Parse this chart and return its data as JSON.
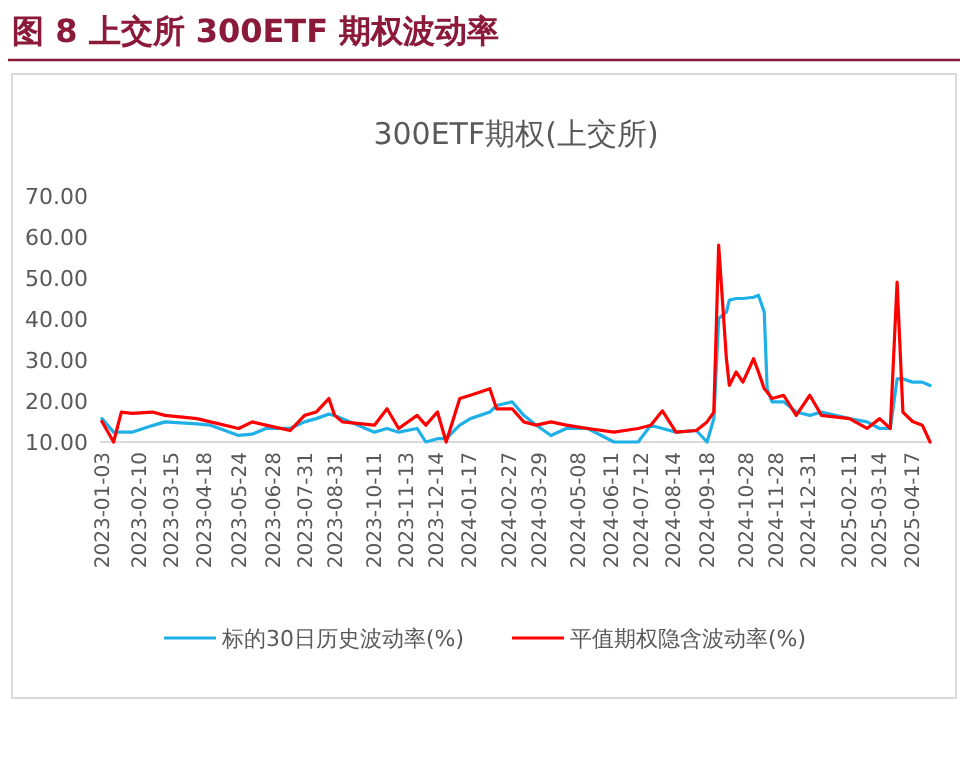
{
  "chart_data": {
    "type": "line",
    "title": "图 8  上交所 300ETF 期权波动率",
    "subtitle": "300ETF期权(上交所)",
    "xlim": [
      "2023-01-01",
      "2025-05-08"
    ],
    "xticks": [
      "2023-01-03",
      "2023-02-10",
      "2023-03-15",
      "2023-04-18",
      "2023-05-24",
      "2023-06-28",
      "2023-07-31",
      "2023-08-31",
      "2023-10-11",
      "2023-11-13",
      "2023-12-14",
      "2024-01-17",
      "2024-02-27",
      "2024-03-29",
      "2024-05-08",
      "2024-06-11",
      "2024-07-12",
      "2024-08-14",
      "2024-09-18",
      "2024-10-28",
      "2024-11-28",
      "2024-12-31",
      "2025-02-11",
      "2025-03-14",
      "2025-04-17"
    ],
    "ylim": [
      10,
      70
    ],
    "yticks": [
      {
        "value": 10,
        "label": "10.00"
      },
      {
        "value": 20,
        "label": "20.00"
      },
      {
        "value": 30,
        "label": "30.00"
      },
      {
        "value": 40,
        "label": "40.00"
      },
      {
        "value": 50,
        "label": "50.00"
      },
      {
        "value": 60,
        "label": "60.00"
      },
      {
        "value": 70,
        "label": "70.00"
      }
    ],
    "x": [
      "2023-01-03",
      "2023-01-15",
      "2023-01-23",
      "2023-02-03",
      "2023-02-24",
      "2023-03-09",
      "2023-04-11",
      "2023-04-25",
      "2023-05-24",
      "2023-06-07",
      "2023-06-21",
      "2023-07-16",
      "2023-07-31",
      "2023-08-12",
      "2023-08-25",
      "2023-08-31",
      "2023-09-08",
      "2023-10-11",
      "2023-10-24",
      "2023-11-05",
      "2023-11-24",
      "2023-12-03",
      "2023-12-15",
      "2023-12-24",
      "2024-01-07",
      "2024-01-18",
      "2024-02-07",
      "2024-02-14",
      "2024-03-01",
      "2024-03-13",
      "2024-03-26",
      "2024-04-10",
      "2024-04-26",
      "2024-05-18",
      "2024-06-14",
      "2024-07-09",
      "2024-07-22",
      "2024-08-03",
      "2024-08-17",
      "2024-09-07",
      "2024-09-18",
      "2024-09-25",
      "2024-09-30",
      "2024-10-08",
      "2024-10-11",
      "2024-10-18",
      "2024-10-25",
      "2024-11-05",
      "2024-11-10",
      "2024-11-16",
      "2024-11-19",
      "2024-11-24",
      "2024-12-06",
      "2024-12-19",
      "2025-01-02",
      "2025-01-14",
      "2025-02-12",
      "2025-03-02",
      "2025-03-15",
      "2025-03-26",
      "2025-04-02",
      "2025-04-08",
      "2025-04-18",
      "2025-04-28",
      "2025-05-06"
    ],
    "series": [
      {
        "name": "标的30日历史波动率(%)",
        "color": "#1fb0e8",
        "values": [
          15.7,
          12.4,
          12.4,
          12.4,
          14,
          14.9,
          14.4,
          14.1,
          11.6,
          11.9,
          13.3,
          13.3,
          14.9,
          15.7,
          16.8,
          16.5,
          15.7,
          12.4,
          13.3,
          12.4,
          13.3,
          10,
          10.8,
          10.8,
          14.1,
          15.7,
          17.3,
          18.9,
          19.8,
          16.5,
          14.1,
          11.6,
          13.3,
          13.3,
          10,
          10,
          14.1,
          13.3,
          12.4,
          12.8,
          10,
          15.7,
          40.1,
          41.7,
          44.6,
          45,
          45,
          45.3,
          45.8,
          41.7,
          23,
          19.8,
          19.8,
          17.3,
          16.5,
          17.3,
          15.7,
          14.9,
          13.3,
          13.3,
          25.4,
          25.4,
          24.6,
          24.6,
          23.8
        ]
      },
      {
        "name": "平值期权隐含波动率(%)",
        "color": "#ff0000",
        "values": [
          15,
          10,
          17.3,
          17,
          17.3,
          16.5,
          15.7,
          14.9,
          13.3,
          14.9,
          14.1,
          12.8,
          16.5,
          17.3,
          20.6,
          16.5,
          14.9,
          14.1,
          18.1,
          13.3,
          16.5,
          14.1,
          17.3,
          10,
          20.6,
          21.4,
          23,
          18.1,
          18.1,
          14.9,
          14.1,
          14.9,
          14.1,
          13.3,
          12.4,
          13.3,
          14.1,
          17.6,
          12.4,
          12.8,
          14.9,
          17.3,
          58,
          30.3,
          23.8,
          27.1,
          24.6,
          30.3,
          27.1,
          23,
          22.2,
          20.6,
          21.4,
          16.5,
          21.4,
          16.5,
          15.7,
          13.3,
          15.7,
          13.3,
          49,
          17.3,
          15,
          14.1,
          10
        ]
      }
    ],
    "legend": "bottom",
    "grid": false,
    "marker": "none",
    "line_style": "solid"
  }
}
